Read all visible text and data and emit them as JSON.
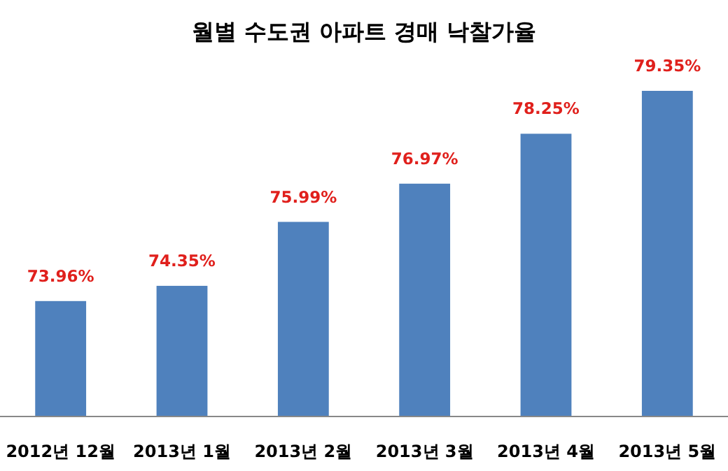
{
  "chart_data": {
    "type": "bar",
    "title": "월별 수도권 아파트 경매 낙찰가율",
    "categories": [
      "2012년 12월",
      "2013년 1월",
      "2013년 2월",
      "2013년 3월",
      "2013년 4월",
      "2013년 5월"
    ],
    "values": [
      73.96,
      74.35,
      75.99,
      76.97,
      78.25,
      79.35
    ],
    "value_labels": [
      "73.96%",
      "74.35%",
      "75.99%",
      "76.97%",
      "78.25%",
      "79.35%"
    ],
    "color": "#4f81bd",
    "ylim": [
      71,
      79.35
    ]
  }
}
